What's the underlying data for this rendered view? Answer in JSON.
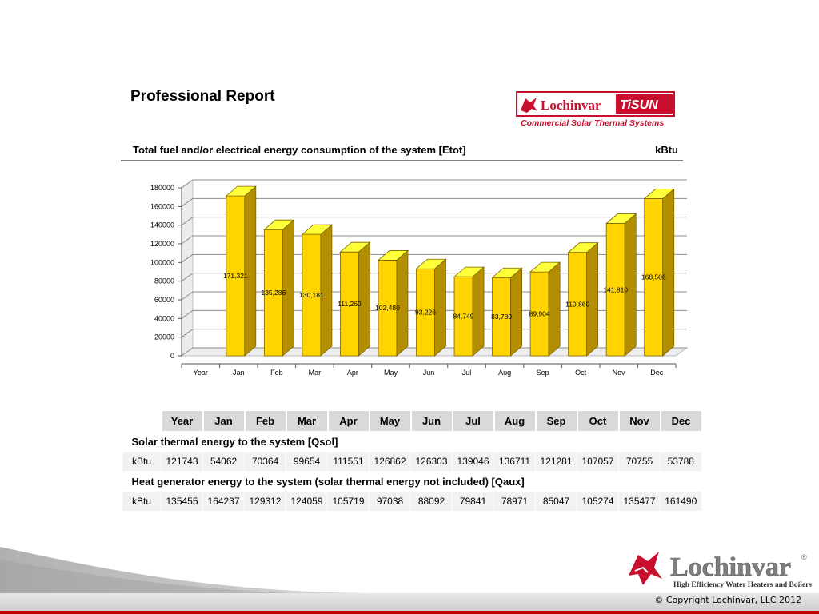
{
  "page": {
    "title": "Professional Report",
    "heading": "Total fuel and/or electrical energy consumption of the system [Etot]",
    "unit": "kBtu"
  },
  "logo_top": {
    "brand": "Lochinvar",
    "product": "TiSUN",
    "tagline": "Commercial Solar Thermal Systems",
    "color": "#c8102e"
  },
  "logo_bottom": {
    "brand": "Lochinvar",
    "tagline": "High Efficiency Water Heaters and Boilers",
    "registered": "®"
  },
  "footer": {
    "copyright": "© Copyright Lochinvar, LLC  2012"
  },
  "chart_data": {
    "type": "bar",
    "categories": [
      "Year",
      "Jan",
      "Feb",
      "Mar",
      "Apr",
      "May",
      "Jun",
      "Jul",
      "Aug",
      "Sep",
      "Oct",
      "Nov",
      "Dec"
    ],
    "values": [
      null,
      171321,
      135286,
      130181,
      111260,
      102480,
      93226,
      84749,
      83780,
      89904,
      110860,
      141810,
      168506
    ],
    "labels": [
      "",
      "171,321",
      "135,286",
      "130,181",
      "111,260",
      "102,480",
      "93,226",
      "84,749",
      "83,780",
      "89,904",
      "110,860",
      "141,810",
      "168,506"
    ],
    "y_ticks": [
      "0",
      "20000",
      "40000",
      "60000",
      "80000",
      "100000",
      "120000",
      "140000",
      "160000",
      "180000"
    ],
    "ylim": [
      0,
      180000
    ],
    "grid": true,
    "bar_color": "#ffd400",
    "bar_top_color": "#ffff3a",
    "bar_side_color": "#b38f00"
  },
  "table": {
    "headers": [
      "Year",
      "Jan",
      "Feb",
      "Mar",
      "Apr",
      "May",
      "Jun",
      "Jul",
      "Aug",
      "Sep",
      "Oct",
      "Nov",
      "Dec"
    ],
    "rows": [
      {
        "title": "Solar thermal energy to the system [Qsol]",
        "unit": "kBtu",
        "values": [
          "121743",
          "54062",
          "70364",
          "99654",
          "111551",
          "126862",
          "126303",
          "139046",
          "136711",
          "121281",
          "107057",
          "70755",
          "53788"
        ]
      },
      {
        "title": "Heat generator energy to the system (solar thermal energy not included) [Qaux]",
        "unit": "kBtu",
        "values": [
          "135455",
          "164237",
          "129312",
          "124059",
          "105719",
          "97038",
          "88092",
          "79841",
          "78971",
          "85047",
          "105274",
          "135477",
          "161490"
        ]
      }
    ]
  }
}
